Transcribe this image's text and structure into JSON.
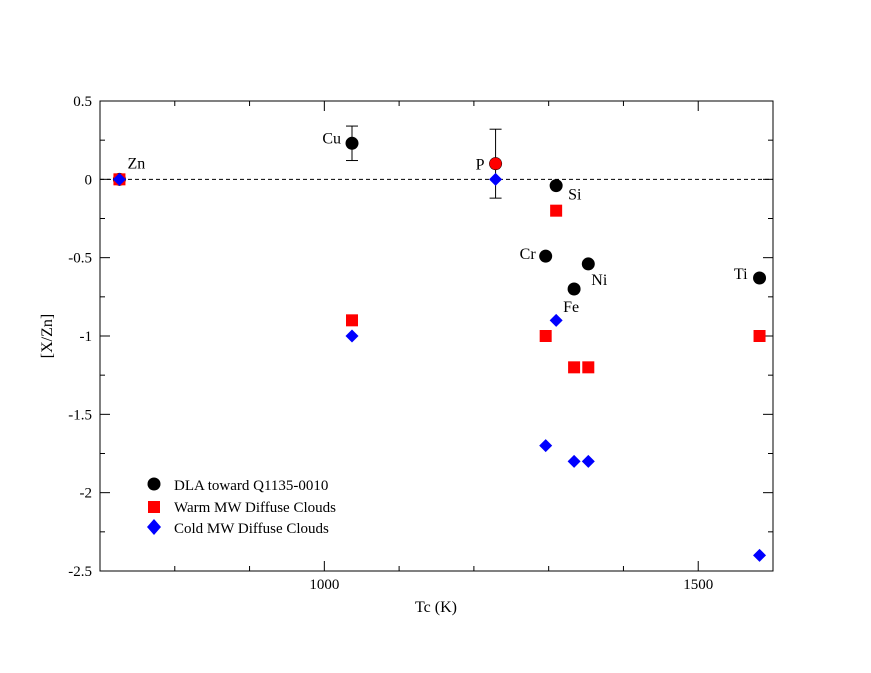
{
  "colors": {
    "dla": "#000000",
    "warm": "#ff0000",
    "cold": "#0000ff",
    "axis": "#000000",
    "background": "#ffffff"
  },
  "chart_data": {
    "type": "scatter",
    "title": "",
    "xlabel": "Tc (K)",
    "ylabel": "[X/Zn]",
    "xlim": [
      700,
      1600
    ],
    "ylim": [
      -2.5,
      0.5
    ],
    "x_ticks": [
      1000,
      1500
    ],
    "x_tick_labels": [
      "1000",
      "1500"
    ],
    "y_ticks": [
      0.5,
      0,
      -0.5,
      -1,
      -1.5,
      -2,
      -2.5
    ],
    "y_tick_labels": [
      "0.5",
      "0",
      "-0.5",
      "-1",
      "-1.5",
      "-2",
      "-2.5"
    ],
    "reference_line": {
      "y": 0,
      "style": "dashed"
    },
    "legend_position": "bottom-left",
    "series": [
      {
        "name": "DLA toward Q1135-0010",
        "marker": "circle",
        "color": "#000000",
        "points": [
          {
            "label": "Zn",
            "x": 726,
            "y": 0.0,
            "err": 0
          },
          {
            "label": "Cu",
            "x": 1037,
            "y": 0.23,
            "err": 0.11
          },
          {
            "label": "P",
            "x": 1229,
            "y": 0.1,
            "err": 0.22
          },
          {
            "label": "Si",
            "x": 1310,
            "y": -0.04,
            "err": 0
          },
          {
            "label": "Cr",
            "x": 1296,
            "y": -0.49,
            "err": 0
          },
          {
            "label": "Ni",
            "x": 1353,
            "y": -0.54,
            "err": 0
          },
          {
            "label": "Fe",
            "x": 1334,
            "y": -0.7,
            "err": 0
          },
          {
            "label": "Ti",
            "x": 1582,
            "y": -0.63,
            "err": 0
          }
        ]
      },
      {
        "name": "Warm MW Diffuse Clouds",
        "marker": "square",
        "color": "#ff0000",
        "points": [
          {
            "x": 726,
            "y": 0.0
          },
          {
            "x": 1037,
            "y": -0.9
          },
          {
            "x": 1229,
            "y": 0.1
          },
          {
            "x": 1310,
            "y": -0.2
          },
          {
            "x": 1296,
            "y": -1.0
          },
          {
            "x": 1353,
            "y": -1.2
          },
          {
            "x": 1334,
            "y": -1.2
          },
          {
            "x": 1582,
            "y": -1.0
          }
        ]
      },
      {
        "name": "Cold MW Diffuse Clouds",
        "marker": "diamond",
        "color": "#0000ff",
        "points": [
          {
            "x": 726,
            "y": 0.0
          },
          {
            "x": 1037,
            "y": -1.0
          },
          {
            "x": 1229,
            "y": 0.0
          },
          {
            "x": 1310,
            "y": -0.9
          },
          {
            "x": 1296,
            "y": -1.7
          },
          {
            "x": 1353,
            "y": -1.8
          },
          {
            "x": 1334,
            "y": -1.8
          },
          {
            "x": 1582,
            "y": -2.4
          }
        ]
      }
    ]
  }
}
